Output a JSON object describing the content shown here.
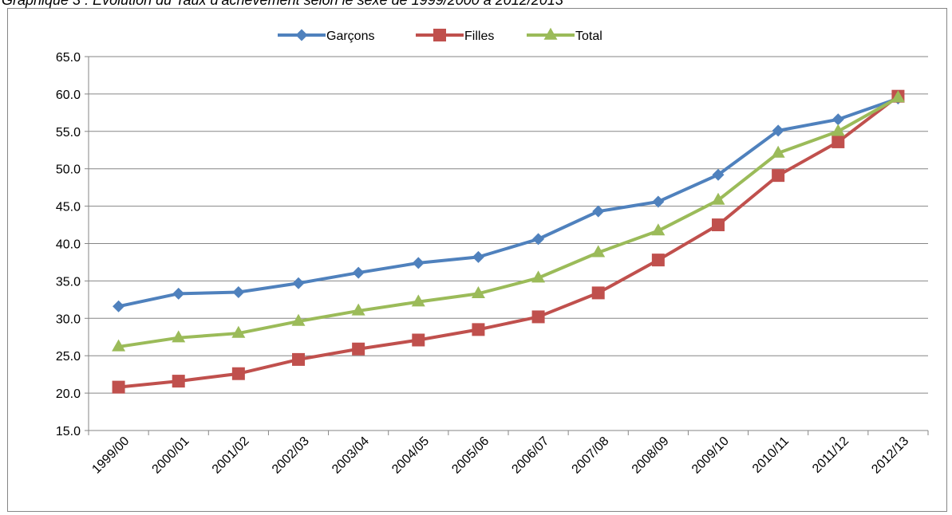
{
  "caption": "Graphique 3 : Evolution du Taux d’achèvement selon le sexe de 1999/2000 à 2012/2013",
  "chart_data": {
    "type": "line",
    "title": "",
    "xlabel": "",
    "ylabel": "",
    "categories": [
      "1999/00",
      "2000/01",
      "2001/02",
      "2002/03",
      "2003/04",
      "2004/05",
      "2005/06",
      "2006/07",
      "2007/08",
      "2008/09",
      "2009/10",
      "2010/11",
      "2011/12",
      "2012/13"
    ],
    "ylim": [
      15,
      65
    ],
    "yticks": [
      "15.0",
      "20.0",
      "25.0",
      "30.0",
      "35.0",
      "40.0",
      "45.0",
      "50.0",
      "55.0",
      "60.0",
      "65.0"
    ],
    "grid": true,
    "legend_position": "top",
    "series": [
      {
        "name": "Garçons",
        "color": "#4f81bd",
        "marker": "diamond",
        "values": [
          31.6,
          33.3,
          33.5,
          34.7,
          36.1,
          37.4,
          38.2,
          40.6,
          44.3,
          45.6,
          49.2,
          55.1,
          56.6,
          59.4
        ]
      },
      {
        "name": "Filles",
        "color": "#c0504d",
        "marker": "square",
        "values": [
          20.8,
          21.6,
          22.6,
          24.5,
          25.9,
          27.1,
          28.5,
          30.2,
          33.4,
          37.8,
          42.5,
          49.1,
          53.6,
          59.7
        ]
      },
      {
        "name": "Total",
        "color": "#9bbb59",
        "marker": "triangle",
        "values": [
          26.2,
          27.4,
          28.0,
          29.6,
          31.0,
          32.2,
          33.3,
          35.4,
          38.8,
          41.7,
          45.8,
          52.1,
          55.0,
          59.5
        ]
      }
    ]
  }
}
